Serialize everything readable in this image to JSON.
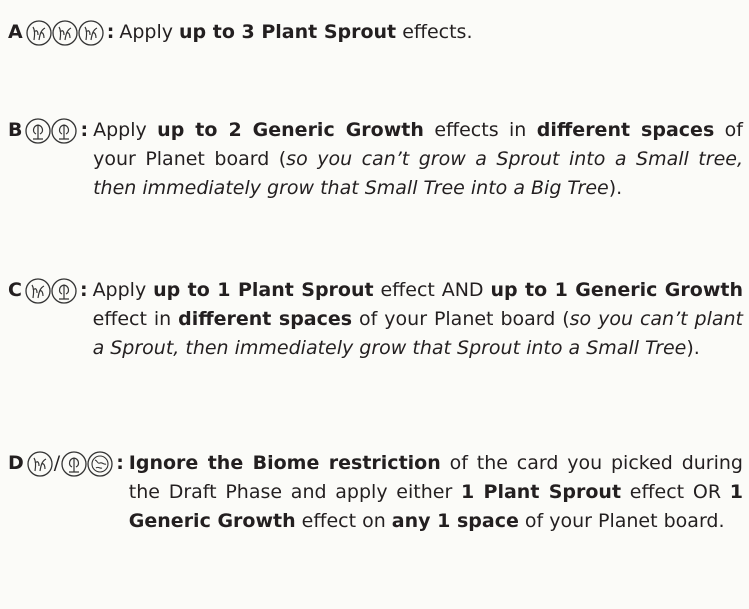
{
  "rules": [
    {
      "letter": "A",
      "separator": ":",
      "text": [
        "Apply ",
        "up to 3 Plant Sprout",
        " effects."
      ]
    },
    {
      "letter": "B",
      "separator": ":",
      "text": [
        "Apply ",
        "up to 2 Generic Growth",
        " effects in ",
        "different spaces",
        " of your Planet board (",
        "so you can’t grow a Sprout into a Small tree, then immediately grow that Small Tree into a Big Tree",
        ")."
      ]
    },
    {
      "letter": "C",
      "separator": ":",
      "text": [
        "Apply ",
        "up to 1 Plant Sprout",
        " effect AND ",
        "up to 1 Generic Growth",
        " effect in ",
        "different spaces",
        " of your Planet board (",
        "so you can’t plant a Sprout, then immediately grow that Sprout into a Small Tree",
        ")."
      ]
    },
    {
      "letter": "D",
      "icon_separator": "/",
      "separator": ":",
      "text": [
        "Ignore the Biome restriction",
        " of the card you picked during the Draft Phase and apply either ",
        "1 Plant Sprout",
        " effect OR ",
        "1 Generic Growth",
        " effect on ",
        "any 1 space",
        " of your Planet board."
      ]
    }
  ]
}
